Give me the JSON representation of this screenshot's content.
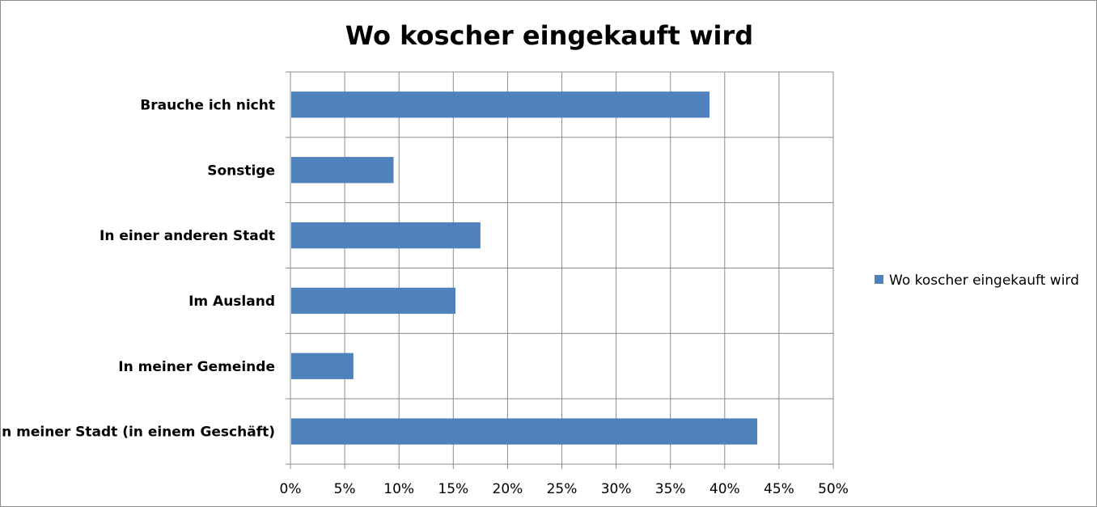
{
  "chart_data": {
    "type": "bar",
    "orientation": "horizontal",
    "title": "Wo koscher eingekauft wird",
    "categories": [
      "In meiner Stadt (in einem Geschäft)",
      "In meiner Gemeinde",
      "Im Ausland",
      "In einer anderen Stadt",
      "Sonstige",
      "Brauche ich nicht"
    ],
    "series": [
      {
        "name": "Wo koscher eingekauft wird",
        "values": [
          43,
          5.8,
          15.2,
          17.5,
          9.5,
          38.6
        ],
        "color": "#4f81bd"
      }
    ],
    "xlim": [
      0,
      50
    ],
    "xticks": [
      0,
      5,
      10,
      15,
      20,
      25,
      30,
      35,
      40,
      45,
      50
    ],
    "xtick_labels": [
      "0%",
      "5%",
      "10%",
      "15%",
      "20%",
      "25%",
      "30%",
      "35%",
      "40%",
      "45%",
      "50%"
    ],
    "value_unit": "%",
    "grid": true,
    "legend_position": "right",
    "xlabel": "",
    "ylabel": ""
  }
}
